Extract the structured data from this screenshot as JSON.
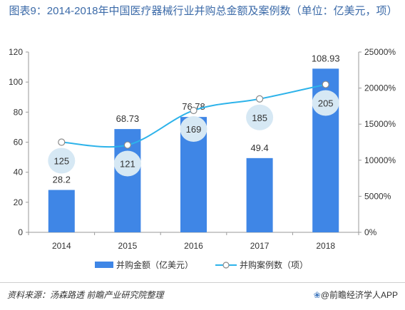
{
  "title": "图表9：2014-2018年中国医疗器械行业并购总金额及案例数（单位：亿美元，项）",
  "footer": {
    "source": "资料来源：汤森路透 前瞻产业研究院整理",
    "brand_icon": "❀",
    "brand": "@前瞻经济学人APP"
  },
  "colors": {
    "bar": "#3f86e6",
    "line": "#2db3ea",
    "bubble": "#d6e8f4"
  },
  "chart_data": {
    "type": "bar",
    "categories": [
      "2014",
      "2015",
      "2016",
      "2017",
      "2018"
    ],
    "series": [
      {
        "name": "并购金额（亿美元）",
        "type": "bar",
        "axis": "left",
        "values": [
          28.2,
          68.73,
          76.78,
          49.4,
          108.93
        ],
        "labels": [
          "28.2",
          "68.73",
          "76.78",
          "49.4",
          "108.93"
        ]
      },
      {
        "name": "并购案例数（项）",
        "type": "line",
        "axis": "right",
        "values": [
          125,
          121,
          169,
          185,
          205
        ],
        "labels": [
          "125",
          "121",
          "169",
          "185",
          "205"
        ]
      }
    ],
    "y_left": {
      "min": 0,
      "max": 120,
      "ticks": [
        "0",
        "20",
        "40",
        "60",
        "80",
        "100",
        "120"
      ]
    },
    "y_right": {
      "min": 0,
      "max": 25000,
      "ticks": [
        "0%",
        "5000%",
        "10000%",
        "15000%",
        "20000%",
        "25000%"
      ]
    },
    "legend_position": "bottom",
    "grid": false
  }
}
